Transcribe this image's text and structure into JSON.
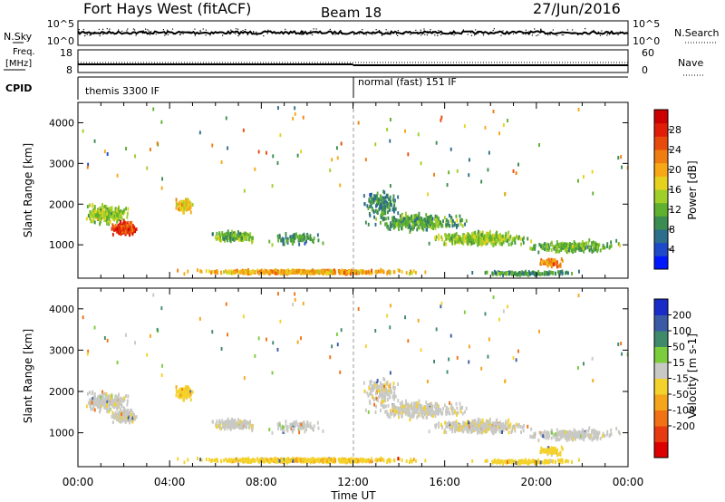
{
  "header": {
    "station": "Fort Hays West (fitACF)",
    "beam": "Beam 18",
    "date": "27/Jun/2016"
  },
  "strip_labels": {
    "nsky": "N.Sky",
    "nsearch": "N.Search",
    "freq_top": "Freq.",
    "freq_unit": "[MHz]",
    "nave": "Nave",
    "cpid": "CPID",
    "noise_ticks": [
      "10^5",
      "10^0"
    ],
    "freq_ticks": [
      "18",
      "8"
    ],
    "nave_ticks": [
      "60",
      "0"
    ]
  },
  "cpid_modes": [
    "themis 3300 IF",
    "normal (fast) 151 IF"
  ],
  "chart_data": [
    {
      "type": "heatmap",
      "panel": "power",
      "ylabel": "Slant Range [km]",
      "xlabel": "",
      "x_ticks": [
        "00:00",
        "04:00",
        "08:00",
        "12:00",
        "16:00",
        "20:00",
        "00:00"
      ],
      "y_ticks": [
        1000,
        2000,
        3000,
        4000
      ],
      "ylim": [
        180,
        4500
      ],
      "colorbar": {
        "label": "Power [dB]",
        "range": [
          0,
          32
        ],
        "tick_labels": [
          "4",
          "8",
          "12",
          "16",
          "20",
          "24",
          "28"
        ],
        "colors": [
          "#0018ff",
          "#1e49c8",
          "#2d6e8c",
          "#3b8c50",
          "#5fb02e",
          "#9fcf28",
          "#e6d21e",
          "#f7a814",
          "#f07d10",
          "#e84a0c",
          "#e01e08",
          "#cc0000"
        ]
      }
    },
    {
      "type": "heatmap",
      "panel": "velocity",
      "ylabel": "Slant Range [km]",
      "xlabel": "Time UT",
      "x_ticks": [
        "00:00",
        "04:00",
        "08:00",
        "12:00",
        "16:00",
        "20:00",
        "00:00"
      ],
      "y_ticks": [
        1000,
        2000,
        3000,
        4000
      ],
      "ylim": [
        180,
        4500
      ],
      "colorbar": {
        "label": "Velocity [m s-1]",
        "tick_labels": [
          "200",
          "100",
          "50",
          "15",
          "-15",
          "-50",
          "-100",
          "-200"
        ],
        "colors": [
          "#1a2cc8",
          "#3a5aa6",
          "#3f8a6a",
          "#7ccd3c",
          "#c8c8c4",
          "#f4d22c",
          "#f4a51a",
          "#f07214",
          "#e83a10",
          "#dd0000"
        ]
      }
    }
  ]
}
